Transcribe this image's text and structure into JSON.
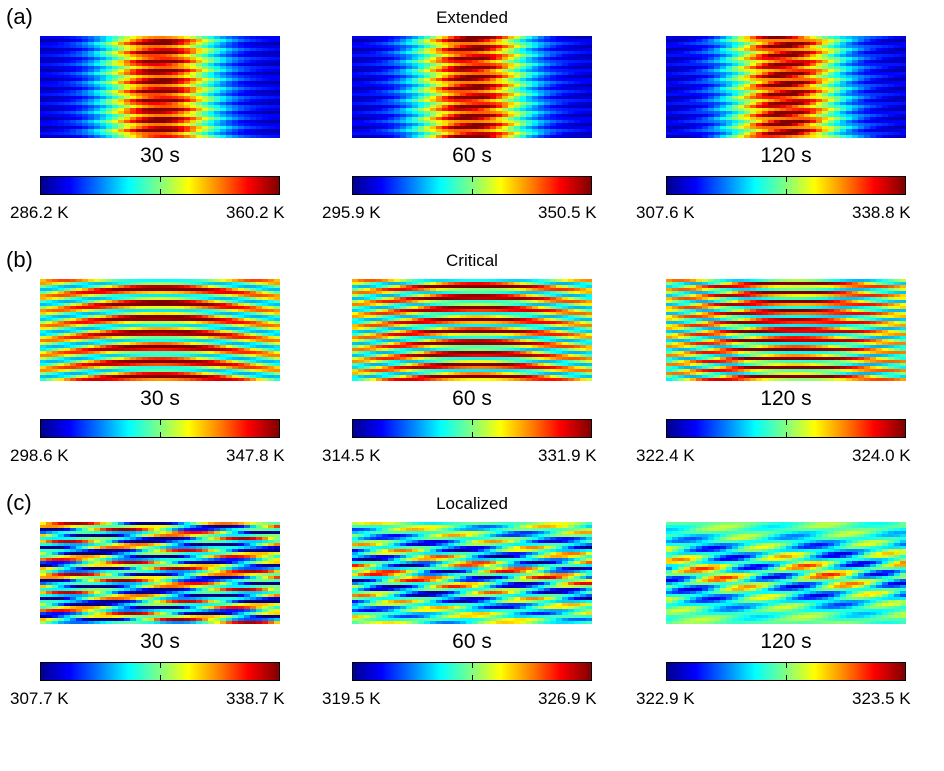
{
  "chart_data": {
    "type": "heatmap",
    "colormap": "jet",
    "rows": [
      {
        "label": "(a)",
        "title": "Extended",
        "pattern": "extended",
        "panels": [
          {
            "time": "30 s",
            "min": "286.2 K",
            "max": "360.2 K"
          },
          {
            "time": "60 s",
            "min": "295.9 K",
            "max": "350.5 K"
          },
          {
            "time": "120 s",
            "min": "307.6 K",
            "max": "338.8 K"
          }
        ]
      },
      {
        "label": "(b)",
        "title": "Critical",
        "pattern": "critical",
        "panels": [
          {
            "time": "30 s",
            "min": "298.6 K",
            "max": "347.8 K"
          },
          {
            "time": "60 s",
            "min": "314.5 K",
            "max": "331.9 K"
          },
          {
            "time": "120 s",
            "min": "322.4 K",
            "max": "324.0 K"
          }
        ]
      },
      {
        "label": "(c)",
        "title": "Localized",
        "pattern": "localized",
        "panels": [
          {
            "time": "30 s",
            "min": "307.7 K",
            "max": "338.7 K"
          },
          {
            "time": "60 s",
            "min": "319.5 K",
            "max": "326.9 K"
          },
          {
            "time": "120 s",
            "min": "322.9 K",
            "max": "323.5 K"
          }
        ]
      }
    ]
  }
}
